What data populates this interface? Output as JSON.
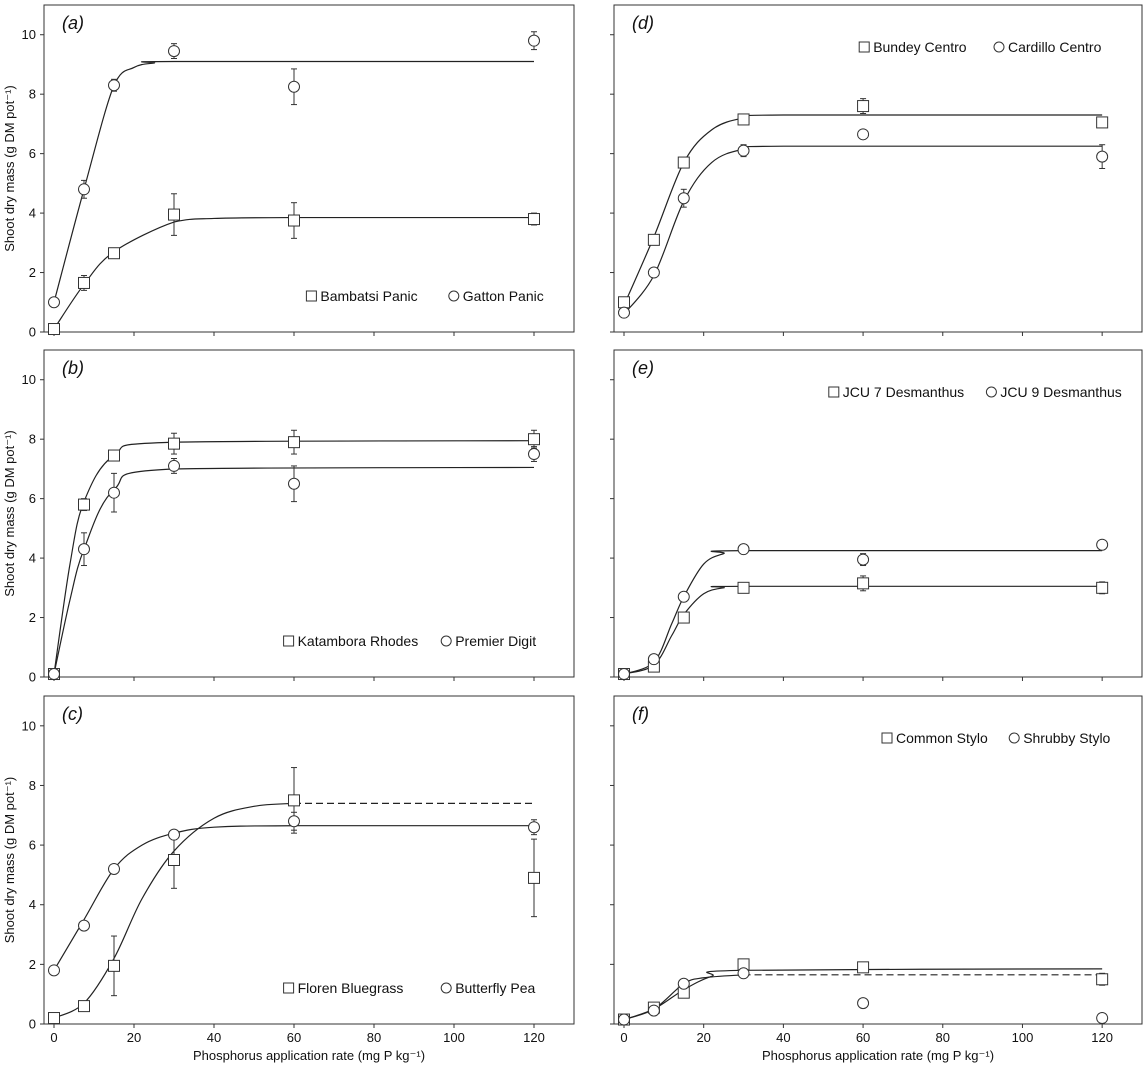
{
  "axes": {
    "xlabel": "Phosphorus application rate (mg P kg⁻¹)",
    "ylabel": "Shoot dry mass (g DM pot⁻¹)",
    "xticks": [
      "0",
      "20",
      "40",
      "60",
      "80",
      "100",
      "120"
    ],
    "yticks": [
      "0",
      "2",
      "4",
      "6",
      "8",
      "10"
    ]
  },
  "chart_data": [
    {
      "type": "scatter",
      "panel": "(a)",
      "xlim": [
        0,
        130
      ],
      "ylim": [
        0,
        11
      ],
      "yticklabels_shown": true,
      "xticklabels_shown": false,
      "xlabel": "",
      "ylabel": "Shoot dry mass (g DM pot⁻¹)",
      "legend": "bottom-right",
      "series": [
        {
          "name": "Bambatsi Panic",
          "marker": "square",
          "x": [
            0,
            7.5,
            15,
            30,
            60,
            120
          ],
          "y": [
            0.1,
            1.65,
            2.65,
            3.95,
            3.75,
            3.8
          ],
          "err": [
            0.05,
            0.25,
            0.15,
            0.7,
            0.6,
            0.2
          ],
          "fit": {
            "style": "solid",
            "x": [
              0,
              7.5,
              15,
              30,
              40,
              60,
              120
            ],
            "y": [
              0.1,
              1.6,
              2.7,
              3.7,
              3.82,
              3.85,
              3.85
            ]
          }
        },
        {
          "name": "Gatton Panic",
          "marker": "circle",
          "x": [
            0,
            7.5,
            15,
            30,
            60,
            120
          ],
          "y": [
            1.0,
            4.8,
            8.3,
            9.45,
            8.25,
            9.8
          ],
          "err": [
            0.05,
            0.3,
            0.2,
            0.25,
            0.6,
            0.3
          ],
          "fit": {
            "style": "solid",
            "x": [
              0,
              7.5,
              15,
              20,
              25,
              30,
              120
            ],
            "y": [
              1.0,
              4.8,
              8.3,
              8.9,
              9.05,
              9.1,
              9.1
            ]
          }
        }
      ]
    },
    {
      "type": "scatter",
      "panel": "(b)",
      "xlim": [
        0,
        130
      ],
      "ylim": [
        0,
        11
      ],
      "yticklabels_shown": true,
      "xticklabels_shown": false,
      "xlabel": "",
      "ylabel": "Shoot dry mass (g DM pot⁻¹)",
      "legend": "bottom-right",
      "series": [
        {
          "name": "Katambora Rhodes",
          "marker": "square",
          "x": [
            0,
            7.5,
            15,
            30,
            60,
            120
          ],
          "y": [
            0.1,
            5.8,
            7.45,
            7.85,
            7.9,
            8.0
          ],
          "err": [
            0.05,
            0.2,
            0.1,
            0.35,
            0.4,
            0.3
          ],
          "fit": {
            "style": "solid",
            "x": [
              0,
              4,
              7.5,
              15,
              30,
              120
            ],
            "y": [
              0.1,
              3.8,
              5.9,
              7.45,
              7.9,
              7.95
            ]
          }
        },
        {
          "name": "Premier Digit",
          "marker": "circle",
          "x": [
            0,
            7.5,
            15,
            30,
            60,
            120
          ],
          "y": [
            0.1,
            4.3,
            6.2,
            7.1,
            6.5,
            7.5
          ],
          "err": [
            0.05,
            0.55,
            0.65,
            0.25,
            0.6,
            0.25
          ],
          "fit": {
            "style": "solid",
            "x": [
              0,
              4,
              7.5,
              15,
              30,
              120
            ],
            "y": [
              0.1,
              2.6,
              4.3,
              6.3,
              7.0,
              7.05
            ]
          }
        }
      ]
    },
    {
      "type": "scatter",
      "panel": "(c)",
      "xlim": [
        0,
        130
      ],
      "ylim": [
        0,
        11
      ],
      "yticklabels_shown": true,
      "xticklabels_shown": true,
      "xlabel": "Phosphorus application rate (mg P kg⁻¹)",
      "ylabel": "Shoot dry mass (g DM pot⁻¹)",
      "legend": "bottom-right",
      "series": [
        {
          "name": "Floren Bluegrass",
          "marker": "square",
          "x": [
            0,
            7.5,
            15,
            30,
            60,
            120
          ],
          "y": [
            0.2,
            0.6,
            1.95,
            5.5,
            7.5,
            4.9
          ],
          "err": [
            0.05,
            0.1,
            1.0,
            0.95,
            1.1,
            1.3
          ],
          "fit": {
            "style": "solid",
            "x": [
              0,
              7.5,
              15,
              22,
              30,
              40,
              50,
              60
            ],
            "y": [
              0.2,
              0.7,
              2.2,
              4.2,
              5.8,
              6.9,
              7.3,
              7.4
            ]
          },
          "fit_extension": {
            "style": "dashed",
            "x": [
              60,
              120
            ],
            "y": [
              7.4,
              7.4
            ]
          }
        },
        {
          "name": "Butterfly Pea",
          "marker": "circle",
          "x": [
            0,
            7.5,
            15,
            30,
            60,
            120
          ],
          "y": [
            1.8,
            3.3,
            5.2,
            6.35,
            6.8,
            6.6
          ],
          "err": [
            0.05,
            0.1,
            0.1,
            0.15,
            0.3,
            0.25
          ],
          "fit": {
            "style": "solid",
            "x": [
              0,
              7.5,
              15,
              22,
              30,
              40,
              60,
              120
            ],
            "y": [
              1.8,
              3.5,
              5.2,
              6.0,
              6.4,
              6.6,
              6.65,
              6.65
            ]
          }
        }
      ]
    },
    {
      "type": "scatter",
      "panel": "(d)",
      "xlim": [
        0,
        130
      ],
      "ylim": [
        0,
        11
      ],
      "yticklabels_shown": false,
      "xticklabels_shown": false,
      "xlabel": "",
      "ylabel": "",
      "legend": "top-right",
      "series": [
        {
          "name": "Bundey Centro",
          "marker": "square",
          "x": [
            0,
            7.5,
            15,
            30,
            60,
            120
          ],
          "y": [
            1.0,
            3.1,
            5.7,
            7.15,
            7.6,
            7.05
          ],
          "err": [
            0.05,
            0.15,
            0.1,
            0.1,
            0.25,
            0.1
          ],
          "fit": {
            "style": "solid",
            "x": [
              0,
              7.5,
              15,
              22,
              30,
              40,
              120
            ],
            "y": [
              0.9,
              3.2,
              5.7,
              6.8,
              7.2,
              7.3,
              7.3
            ]
          }
        },
        {
          "name": "Cardillo Centro",
          "marker": "circle",
          "x": [
            0,
            7.5,
            15,
            30,
            60,
            120
          ],
          "y": [
            0.65,
            2.0,
            4.5,
            6.1,
            6.65,
            5.9
          ],
          "err": [
            0.05,
            0.1,
            0.3,
            0.2,
            0.1,
            0.4
          ],
          "fit": {
            "style": "solid",
            "x": [
              0,
              7.5,
              15,
              22,
              30,
              40,
              120
            ],
            "y": [
              0.6,
              1.9,
              4.4,
              5.7,
              6.15,
              6.25,
              6.25
            ]
          }
        }
      ]
    },
    {
      "type": "scatter",
      "panel": "(e)",
      "xlim": [
        0,
        130
      ],
      "ylim": [
        0,
        11
      ],
      "yticklabels_shown": false,
      "xticklabels_shown": false,
      "xlabel": "",
      "ylabel": "",
      "legend": "top-right",
      "series": [
        {
          "name": "JCU 7 Desmanthus",
          "marker": "square",
          "x": [
            0,
            7.5,
            15,
            30,
            60,
            120
          ],
          "y": [
            0.1,
            0.35,
            2.0,
            3.0,
            3.15,
            3.0
          ],
          "err": [
            0.05,
            0.05,
            0.15,
            0.1,
            0.25,
            0.2
          ],
          "fit": {
            "style": "solid",
            "x": [
              0,
              7.5,
              12,
              15,
              20,
              25,
              30,
              120
            ],
            "y": [
              0.1,
              0.4,
              1.4,
              2.1,
              2.8,
              3.0,
              3.05,
              3.05
            ]
          }
        },
        {
          "name": "JCU 9 Desmanthus",
          "marker": "circle",
          "x": [
            0,
            7.5,
            15,
            30,
            60,
            120
          ],
          "y": [
            0.1,
            0.6,
            2.7,
            4.3,
            3.95,
            4.45
          ],
          "err": [
            0.05,
            0.05,
            0.1,
            0.05,
            0.2,
            0.05
          ],
          "fit": {
            "style": "solid",
            "x": [
              0,
              7.5,
              12,
              15,
              20,
              25,
              30,
              120
            ],
            "y": [
              0.1,
              0.5,
              1.8,
              2.7,
              3.8,
              4.15,
              4.25,
              4.25
            ]
          }
        }
      ]
    },
    {
      "type": "scatter",
      "panel": "(f)",
      "xlim": [
        0,
        130
      ],
      "ylim": [
        0,
        11
      ],
      "yticklabels_shown": false,
      "xticklabels_shown": true,
      "xlabel": "Phosphorus application rate (mg P kg⁻¹)",
      "ylabel": "",
      "legend": "top-right",
      "series": [
        {
          "name": "Common Stylo",
          "marker": "square",
          "x": [
            0,
            7.5,
            15,
            30,
            60,
            120
          ],
          "y": [
            0.15,
            0.55,
            1.05,
            2.0,
            1.9,
            1.5
          ],
          "err": [
            0.05,
            0.05,
            0.1,
            0.15,
            0.1,
            0.2
          ],
          "fit": {
            "style": "solid",
            "x": [
              0,
              7.5,
              15,
              22,
              30,
              120
            ],
            "y": [
              0.15,
              0.5,
              1.15,
              1.6,
              1.8,
              1.85
            ]
          }
        },
        {
          "name": "Shrubby Stylo",
          "marker": "circle",
          "x": [
            0,
            7.5,
            15,
            30,
            60,
            120
          ],
          "y": [
            0.15,
            0.45,
            1.35,
            1.7,
            0.7,
            0.2
          ],
          "err": [
            0.05,
            0.05,
            0.05,
            0.1,
            0.05,
            0.05
          ],
          "fit": {
            "style": "solid",
            "x": [
              0,
              7.5,
              15,
              20,
              30
            ],
            "y": [
              0.15,
              0.5,
              1.35,
              1.55,
              1.65
            ]
          },
          "fit_extension": {
            "style": "dashed",
            "x": [
              30,
              120
            ],
            "y": [
              1.65,
              1.65
            ]
          }
        }
      ]
    }
  ]
}
